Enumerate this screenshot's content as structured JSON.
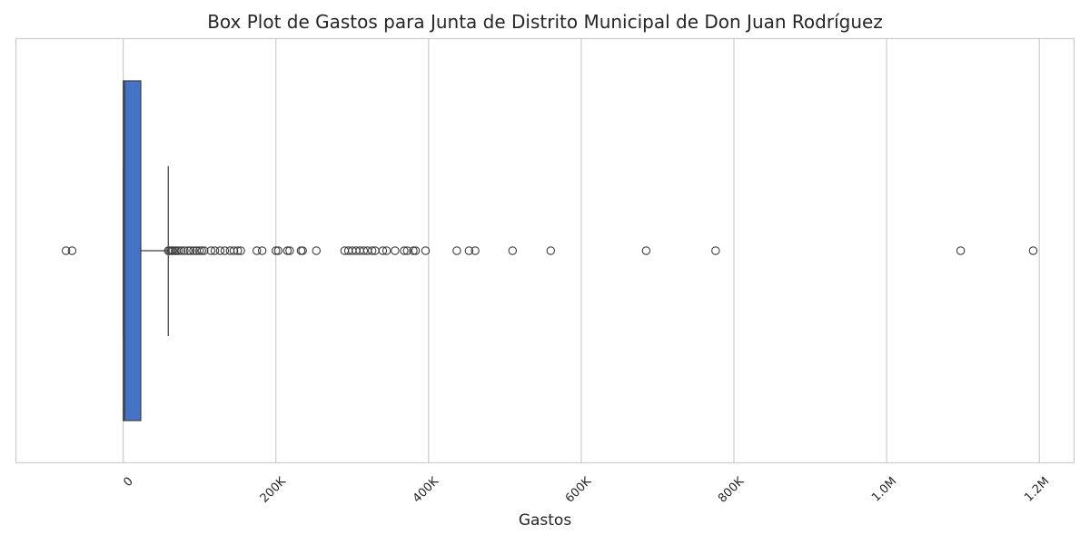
{
  "chart_data": {
    "type": "box",
    "title": "Box Plot de Gastos para Junta de Distrito Municipal de Don Juan Rodríguez",
    "xlabel": "Gastos",
    "ylabel": "",
    "xlim": [
      -140000,
      1245000
    ],
    "xticks": [
      {
        "value": 0,
        "label": "0"
      },
      {
        "value": 200000,
        "label": "200K"
      },
      {
        "value": 400000,
        "label": "400K"
      },
      {
        "value": 600000,
        "label": "600K"
      },
      {
        "value": 800000,
        "label": "800K"
      },
      {
        "value": 1000000,
        "label": "1.0M"
      },
      {
        "value": 1200000,
        "label": "1.2M"
      }
    ],
    "grid": true,
    "box": {
      "whisker_low": 0,
      "q1": 0,
      "median": 2000,
      "q3": 23000,
      "whisker_high": 59000,
      "color": "#4472c4"
    },
    "outliers": [
      -75000,
      -67000,
      59000,
      61000,
      63000,
      65000,
      68000,
      70000,
      73000,
      76000,
      80000,
      85000,
      88000,
      92000,
      96000,
      100000,
      103000,
      106000,
      115000,
      120000,
      127000,
      133000,
      140000,
      145000,
      150000,
      154000,
      175000,
      182000,
      200000,
      203000,
      215000,
      218000,
      233000,
      235000,
      253000,
      290000,
      295000,
      300000,
      305000,
      310000,
      315000,
      320000,
      326000,
      330000,
      340000,
      345000,
      356000,
      368000,
      372000,
      380000,
      383000,
      396000,
      437000,
      453000,
      461000,
      510000,
      560000,
      685000,
      776000,
      1097000,
      1192000
    ]
  }
}
